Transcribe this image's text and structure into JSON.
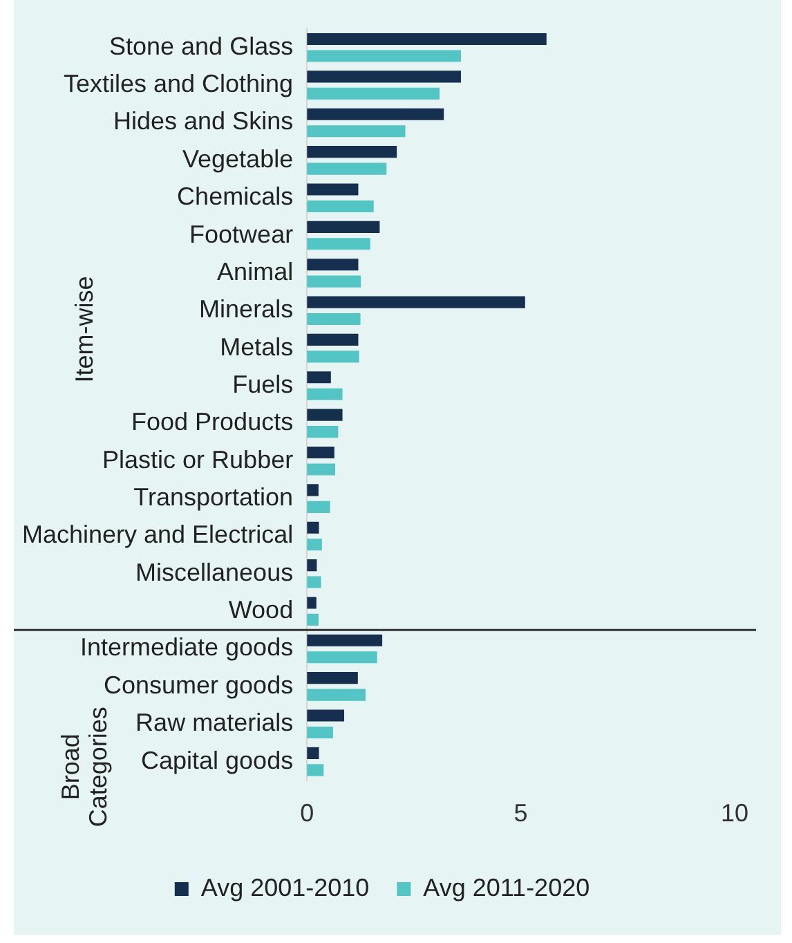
{
  "chart_data": {
    "type": "bar",
    "orientation": "horizontal",
    "categories": [
      "Stone and Glass",
      "Textiles and Clothing",
      "Hides and Skins",
      "Vegetable",
      "Chemicals",
      "Footwear",
      "Animal",
      "Minerals",
      "Metals",
      "Fuels",
      "Food Products",
      "Plastic or Rubber",
      "Transportation",
      "Machinery and Electrical",
      "Miscellaneous",
      "Wood",
      "Intermediate goods",
      "Consumer goods",
      "Raw materials",
      "Capital goods"
    ],
    "series": [
      {
        "name": "Avg 2001-2010",
        "color": "#14304e",
        "values": [
          5.6,
          3.6,
          3.2,
          2.1,
          1.2,
          1.7,
          1.2,
          5.1,
          1.2,
          0.56,
          0.83,
          0.64,
          0.27,
          0.28,
          0.23,
          0.22,
          1.76,
          1.19,
          0.87,
          0.28
        ]
      },
      {
        "name": "Avg 2011-2020",
        "color": "#52c5c4",
        "values": [
          3.6,
          3.1,
          2.3,
          1.86,
          1.56,
          1.48,
          1.26,
          1.25,
          1.22,
          0.83,
          0.73,
          0.66,
          0.54,
          0.35,
          0.33,
          0.27,
          1.64,
          1.37,
          0.61,
          0.39
        ]
      }
    ],
    "xlim": [
      0,
      10.5
    ],
    "xticks": [
      0,
      5,
      10
    ],
    "grid": false,
    "legend": "bottom",
    "annotations": [
      "Item-wise",
      "Broad Categories"
    ]
  }
}
